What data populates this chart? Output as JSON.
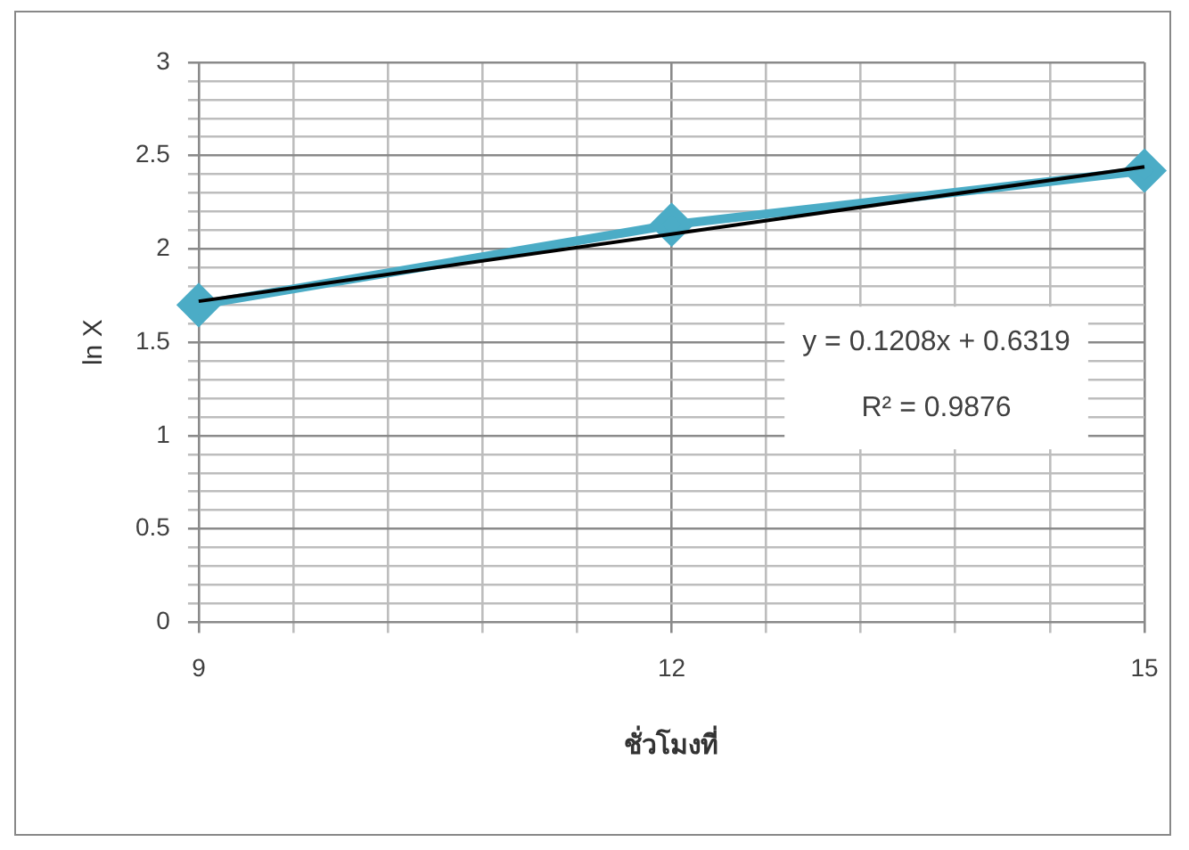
{
  "chart_data": {
    "type": "line",
    "xlabel": "ชั่วโมงที่",
    "ylabel": "ln X",
    "x": [
      9,
      12,
      15
    ],
    "series": [
      {
        "color": "#4bacc6",
        "values": [
          1.7,
          2.13,
          2.42
        ],
        "marker": "diamond"
      },
      {
        "type": "line",
        "color": "#000000",
        "x": [
          9,
          15
        ],
        "values": [
          1.72,
          2.44
        ],
        "marker": "none"
      }
    ],
    "xlim": [
      9,
      15
    ],
    "xticks": [
      9,
      {
        "value": 9.6,
        "label": null
      },
      {
        "value": 10.2,
        "label": null
      },
      {
        "value": 10.8,
        "label": null
      },
      {
        "value": 11.4,
        "label": null
      },
      12,
      {
        "value": 12.6,
        "label": null
      },
      {
        "value": 13.2,
        "label": null
      },
      {
        "value": 13.8,
        "label": null
      },
      {
        "value": 14.4,
        "label": null
      },
      15
    ],
    "ylim": [
      0,
      3
    ],
    "yticks": [
      0,
      {
        "value": 0.1,
        "label": null
      },
      {
        "value": 0.2,
        "label": null
      },
      {
        "value": 0.3,
        "label": null
      },
      {
        "value": 0.4,
        "label": null
      },
      0.5,
      {
        "value": 0.6,
        "label": null
      },
      {
        "value": 0.7,
        "label": null
      },
      {
        "value": 0.8,
        "label": null
      },
      {
        "value": 0.9,
        "label": null
      },
      1,
      {
        "value": 1.1,
        "label": null
      },
      {
        "value": 1.2,
        "label": null
      },
      {
        "value": 1.3,
        "label": null
      },
      {
        "value": 1.4,
        "label": null
      },
      1.5,
      {
        "value": 1.6,
        "label": null
      },
      {
        "value": 1.7,
        "label": null
      },
      {
        "value": 1.8,
        "label": null
      },
      {
        "value": 1.9,
        "label": null
      },
      2,
      {
        "value": 2.1,
        "label": null
      },
      {
        "value": 2.2,
        "label": null
      },
      {
        "value": 2.3,
        "label": null
      },
      {
        "value": 2.4,
        "label": null
      },
      2.5,
      {
        "value": 2.6,
        "label": null
      },
      {
        "value": 2.7,
        "label": null
      },
      {
        "value": 2.8,
        "label": null
      },
      {
        "value": 2.9,
        "label": null
      },
      3
    ],
    "grid": true,
    "legend": false,
    "annotations": [
      "y = 0.1208x + 0.6319",
      "R² = 0.9876"
    ]
  }
}
